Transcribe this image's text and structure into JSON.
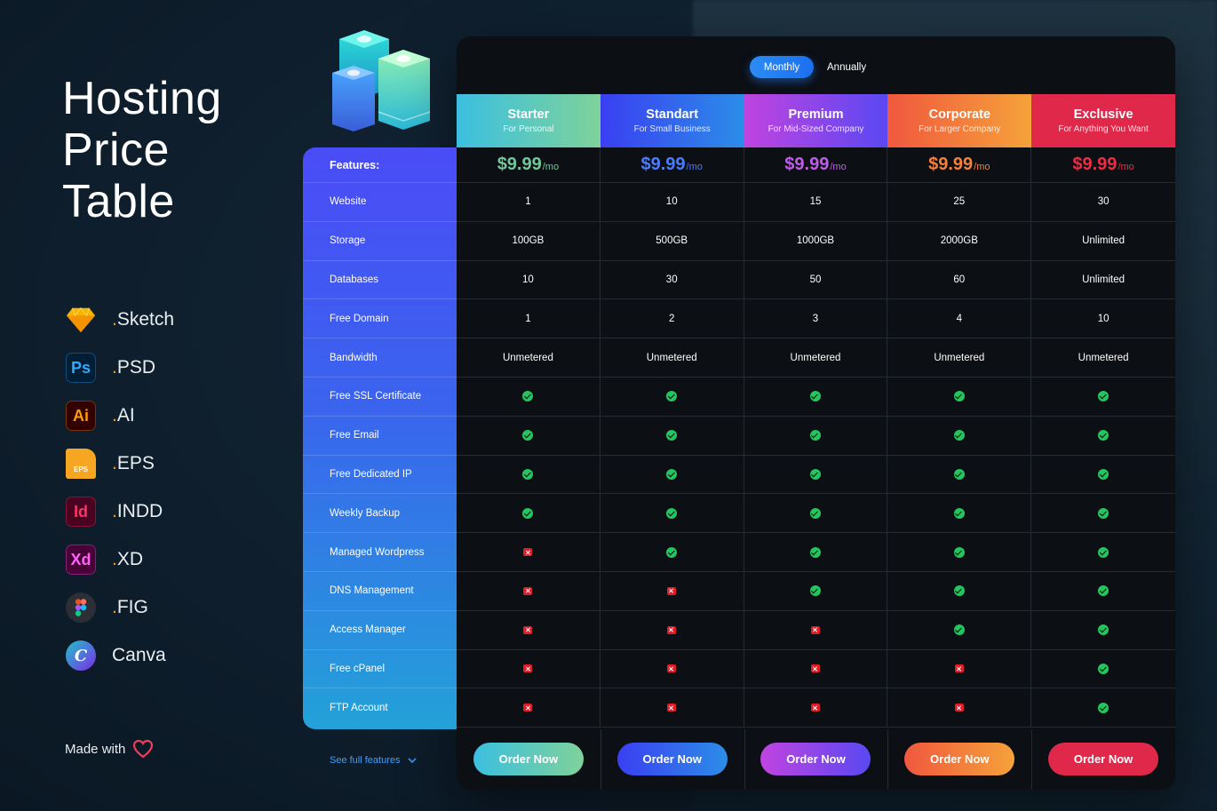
{
  "title": [
    "Hosting",
    "Price",
    "Table"
  ],
  "tools": [
    {
      "icon": "sketch-icon",
      "prefix": ".",
      "label": "Sketch",
      "color": "#f7b500"
    },
    {
      "icon": "photoshop-icon",
      "prefix": ".",
      "label": "PSD",
      "badge": "Ps",
      "color": "#31a8ff",
      "bg": "#001e36"
    },
    {
      "icon": "illustrator-icon",
      "prefix": ".",
      "label": "AI",
      "badge": "Ai",
      "color": "#ff9a00",
      "bg": "#330000"
    },
    {
      "icon": "eps-file-icon",
      "prefix": ".",
      "label": "EPS",
      "badge": "EPS",
      "color": "#ffffff",
      "bg": "#f6a623"
    },
    {
      "icon": "indesign-icon",
      "prefix": ".",
      "label": "INDD",
      "badge": "Id",
      "color": "#ff3366",
      "bg": "#49021f"
    },
    {
      "icon": "xd-icon",
      "prefix": ".",
      "label": "XD",
      "badge": "Xd",
      "color": "#ff61f6",
      "bg": "#470137"
    },
    {
      "icon": "figma-icon",
      "prefix": ".",
      "label": "FIG",
      "color": "#f24e1e",
      "bg": "#2c2f36"
    },
    {
      "icon": "canva-icon",
      "prefix": "",
      "label": "Canva",
      "badge": "C",
      "color": "#ffffff",
      "bg": "#20c4cb"
    }
  ],
  "made_with": "Made with",
  "billing_toggle": {
    "active": "Monthly",
    "inactive": "Annually"
  },
  "features_header": "Features:",
  "features": [
    "Website",
    "Storage",
    "Databases",
    "Free Domain",
    "Bandwidth",
    "Free SSL Certificate",
    "Free Email",
    "Free Dedicated IP",
    "Weekly Backup",
    "Managed Wordpress",
    "DNS Management",
    "Access Manager",
    "Free cPanel",
    "FTP Account"
  ],
  "see_full_features": "See full features",
  "plans": [
    {
      "name": "Starter",
      "subtitle": "For Personal",
      "price": "$9.99",
      "unit": "/mo",
      "color": "#72c79a",
      "gradient": [
        "#3bbfe0",
        "#7fd29a"
      ],
      "values": [
        "1",
        "100GB",
        "10",
        "1",
        "Unmetered"
      ],
      "checks": [
        true,
        true,
        true,
        true,
        false,
        false,
        false,
        false,
        false
      ],
      "button": "Order Now"
    },
    {
      "name": "Standart",
      "subtitle": "For Small Business",
      "price": "$9.99",
      "unit": "/mo",
      "color": "#4a7cff",
      "gradient": [
        "#3a3ff2",
        "#2c8de8"
      ],
      "values": [
        "10",
        "500GB",
        "30",
        "2",
        "Unmetered"
      ],
      "checks": [
        true,
        true,
        true,
        true,
        true,
        false,
        false,
        false,
        false
      ],
      "button": "Order Now"
    },
    {
      "name": "Premium",
      "subtitle": "For Mid-Sized Company",
      "price": "$9.99",
      "unit": "/mo",
      "color": "#c05de8",
      "gradient": [
        "#c044e0",
        "#5a48f2"
      ],
      "values": [
        "15",
        "1000GB",
        "50",
        "3",
        "Unmetered"
      ],
      "checks": [
        true,
        true,
        true,
        true,
        true,
        true,
        false,
        false,
        false
      ],
      "button": "Order Now"
    },
    {
      "name": "Corporate",
      "subtitle": "For Larger Company",
      "price": "$9.99",
      "unit": "/mo",
      "color": "#f5803a",
      "gradient": [
        "#f0583e",
        "#f5a23a"
      ],
      "values": [
        "25",
        "2000GB",
        "60",
        "4",
        "Unmetered"
      ],
      "checks": [
        true,
        true,
        true,
        true,
        true,
        true,
        true,
        false,
        false
      ],
      "button": "Order Now"
    },
    {
      "name": "Exclusive",
      "subtitle": "For Anything You Want",
      "price": "$9.99",
      "unit": "/mo",
      "color": "#ef2d42",
      "gradient": [
        "#e0284a",
        "#e0284a"
      ],
      "values": [
        "30",
        "Unlimited",
        "Unlimited",
        "10",
        "Unmetered"
      ],
      "checks": [
        true,
        true,
        true,
        true,
        true,
        true,
        true,
        true,
        true
      ],
      "button": "Order Now"
    }
  ]
}
